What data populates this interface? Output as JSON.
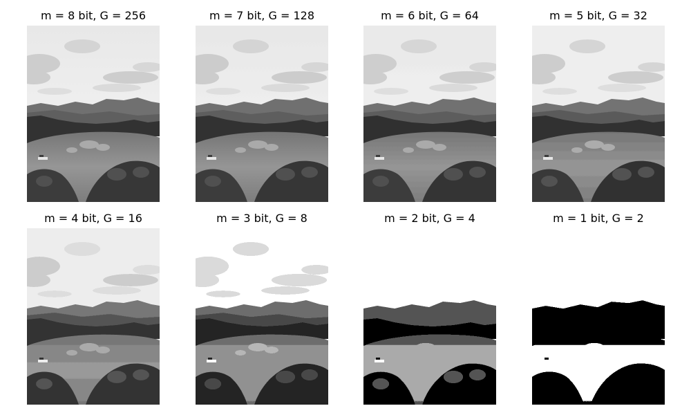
{
  "panels": [
    {
      "title": "m = 8 bit, G = 256",
      "levels": 256
    },
    {
      "title": "m = 7 bit, G = 128",
      "levels": 128
    },
    {
      "title": "m = 6 bit, G = 64",
      "levels": 64
    },
    {
      "title": "m = 5 bit, G = 32",
      "levels": 32
    },
    {
      "title": "m = 4 bit, G = 16",
      "levels": 16
    },
    {
      "title": "m = 3 bit, G = 8",
      "levels": 8
    },
    {
      "title": "m = 2 bit, G = 4",
      "levels": 4
    },
    {
      "title": "m = 1 bit, G = 2",
      "levels": 2
    }
  ]
}
